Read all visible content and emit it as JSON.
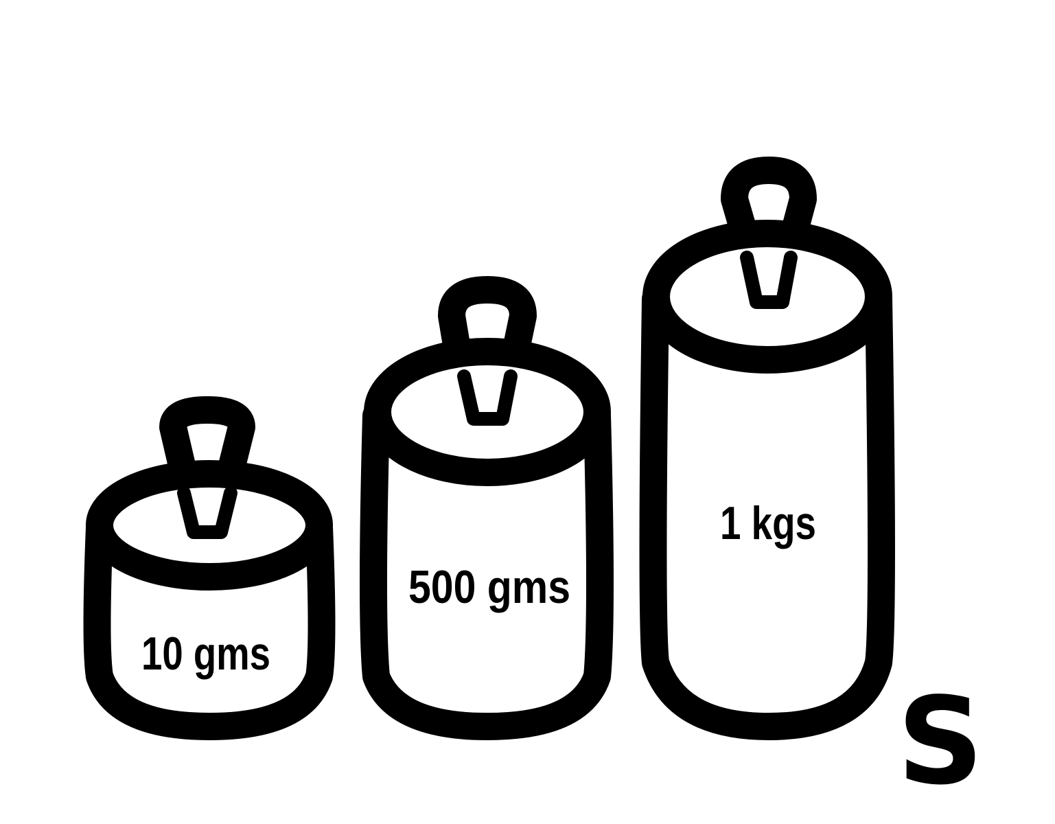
{
  "weights": [
    {
      "label": "10 gms"
    },
    {
      "label": "500 gms"
    },
    {
      "label": "1 kgs"
    }
  ],
  "corner_letter": "S",
  "colors": {
    "stroke": "#000000",
    "background": "#ffffff"
  }
}
